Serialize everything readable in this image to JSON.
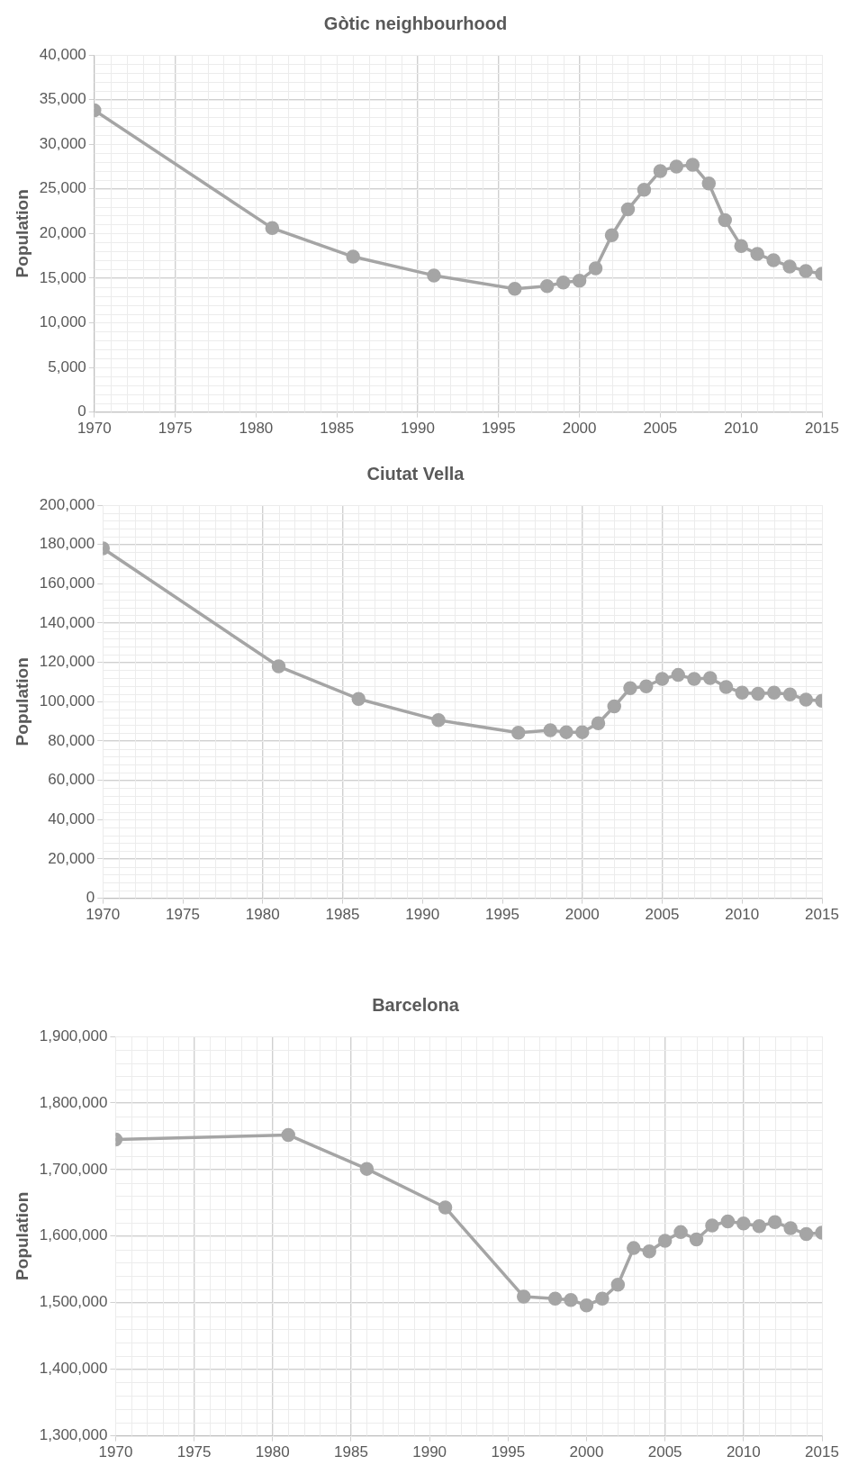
{
  "chart_data": [
    {
      "type": "line",
      "title": "Gòtic neighbourhood",
      "ylabel": "Population",
      "x": [
        1970,
        1981,
        1986,
        1991,
        1996,
        1998,
        1999,
        2000,
        2001,
        2002,
        2003,
        2004,
        2005,
        2006,
        2007,
        2008,
        2009,
        2010,
        2011,
        2012,
        2013,
        2014,
        2015
      ],
      "series": [
        {
          "color": "#a5a5a5",
          "values": [
            33800,
            20600,
            17400,
            15300,
            13800,
            14100,
            14500,
            14700,
            16100,
            19800,
            22700,
            24900,
            27000,
            27500,
            27700,
            25600,
            21500,
            18600,
            17700,
            17000,
            16300,
            15800,
            15500
          ]
        }
      ],
      "xlim": [
        1970,
        2015
      ],
      "xticks": [
        1970,
        1975,
        1980,
        1985,
        1990,
        1995,
        2000,
        2005,
        2010,
        2015
      ],
      "ylim": [
        0,
        40000
      ],
      "yticks": [
        {
          "value": 0,
          "label": "0"
        },
        {
          "value": 5000,
          "label": "5,000"
        },
        {
          "value": 10000,
          "label": "10,000"
        },
        {
          "value": 15000,
          "label": "15,000"
        },
        {
          "value": 20000,
          "label": "20,000"
        },
        {
          "value": 25000,
          "label": "25,000"
        },
        {
          "value": 30000,
          "label": "30,000"
        },
        {
          "value": 35000,
          "label": "35,000"
        },
        {
          "value": 40000,
          "label": "40,000"
        }
      ],
      "grid": true,
      "legend": false,
      "marker": "circle",
      "line_style": "solid"
    },
    {
      "type": "line",
      "title": "Ciutat Vella",
      "ylabel": "Population",
      "x": [
        1970,
        1981,
        1986,
        1991,
        1996,
        1998,
        1999,
        2000,
        2001,
        2002,
        2003,
        2004,
        2005,
        2006,
        2007,
        2008,
        2009,
        2010,
        2011,
        2012,
        2013,
        2014,
        2015
      ],
      "series": [
        {
          "color": "#a5a5a5",
          "values": [
            178000,
            118000,
            101400,
            90600,
            84200,
            85500,
            84500,
            84500,
            89000,
            97600,
            106900,
            107800,
            111600,
            113600,
            111600,
            112000,
            107500,
            104600,
            104000,
            104600,
            103700,
            101100,
            100500
          ]
        }
      ],
      "xlim": [
        1970,
        2015
      ],
      "xticks": [
        1970,
        1975,
        1980,
        1985,
        1990,
        1995,
        2000,
        2005,
        2010,
        2015
      ],
      "ylim": [
        0,
        200000
      ],
      "yticks": [
        {
          "value": 0,
          "label": "0"
        },
        {
          "value": 20000,
          "label": "20,000"
        },
        {
          "value": 40000,
          "label": "40,000"
        },
        {
          "value": 60000,
          "label": "60,000"
        },
        {
          "value": 80000,
          "label": "80,000"
        },
        {
          "value": 100000,
          "label": "100,000"
        },
        {
          "value": 120000,
          "label": "120,000"
        },
        {
          "value": 140000,
          "label": "140,000"
        },
        {
          "value": 160000,
          "label": "160,000"
        },
        {
          "value": 180000,
          "label": "180,000"
        },
        {
          "value": 200000,
          "label": "200,000"
        }
      ],
      "grid": true,
      "legend": false,
      "marker": "circle",
      "line_style": "solid"
    },
    {
      "type": "line",
      "title": "Barcelona",
      "ylabel": "Population",
      "x": [
        1970,
        1981,
        1986,
        1991,
        1996,
        1998,
        1999,
        2000,
        2001,
        2002,
        2003,
        2004,
        2005,
        2006,
        2007,
        2008,
        2009,
        2010,
        2011,
        2012,
        2013,
        2014,
        2015
      ],
      "series": [
        {
          "color": "#a5a5a5",
          "values": [
            1745000,
            1752000,
            1701000,
            1643000,
            1509000,
            1506000,
            1504000,
            1496000,
            1506000,
            1527000,
            1582000,
            1577000,
            1593000,
            1606000,
            1595000,
            1616000,
            1622000,
            1619000,
            1615000,
            1621000,
            1612000,
            1603000,
            1605000
          ]
        }
      ],
      "xlim": [
        1970,
        2015
      ],
      "xticks": [
        1970,
        1975,
        1980,
        1985,
        1990,
        1995,
        2000,
        2005,
        2010,
        2015
      ],
      "ylim": [
        1300000,
        1900000
      ],
      "yticks": [
        {
          "value": 1300000,
          "label": "1,300,000"
        },
        {
          "value": 1400000,
          "label": "1,400,000"
        },
        {
          "value": 1500000,
          "label": "1,500,000"
        },
        {
          "value": 1600000,
          "label": "1,600,000"
        },
        {
          "value": 1700000,
          "label": "1,700,000"
        },
        {
          "value": 1800000,
          "label": "1,800,000"
        },
        {
          "value": 1900000,
          "label": "1,900,000"
        }
      ],
      "grid": true,
      "legend": false,
      "marker": "circle",
      "line_style": "solid"
    }
  ]
}
